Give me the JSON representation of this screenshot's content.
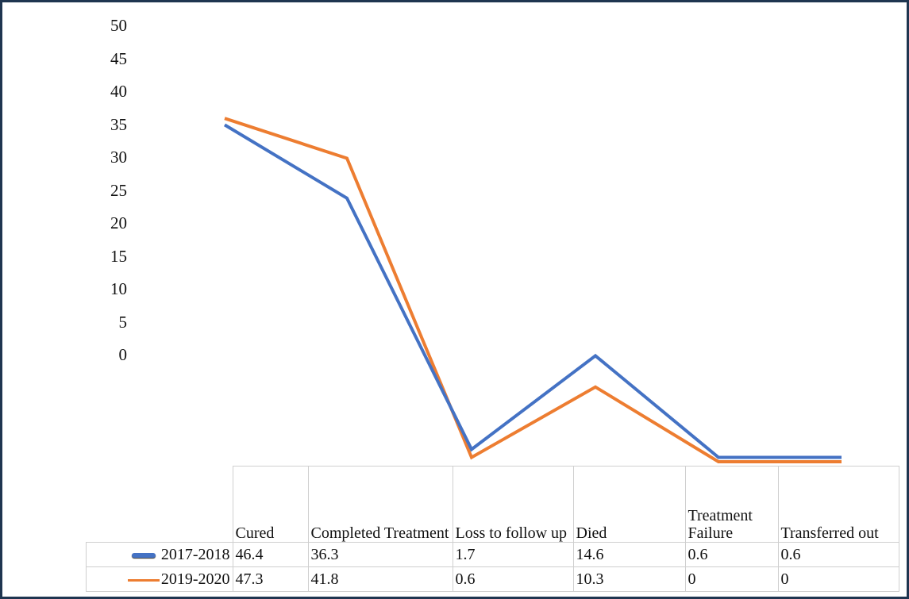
{
  "chart_data": {
    "type": "line",
    "title": "",
    "xlabel": "",
    "ylabel": "",
    "ylim": [
      0,
      50
    ],
    "yticks": [
      "50",
      "45",
      "40",
      "35",
      "30",
      "25",
      "20",
      "15",
      "10",
      "5",
      "0"
    ],
    "categories": [
      "Cured",
      "Completed Treatment",
      "Loss to follow up",
      "Died",
      "Treatment Failure",
      "Transferred out"
    ],
    "series": [
      {
        "name": "2017-2018",
        "color": "#4472c4",
        "values": [
          46.4,
          36.3,
          1.7,
          14.6,
          0.6,
          0.6
        ],
        "labels": [
          "46.4",
          "36.3",
          "1.7",
          "14.6",
          "0.6",
          "0.6"
        ]
      },
      {
        "name": "2019-2020",
        "color": "#ed7d31",
        "values": [
          47.3,
          41.8,
          0.6,
          10.3,
          0,
          0
        ],
        "labels": [
          "47.3",
          "41.8",
          "0.6",
          "10.3",
          "0",
          "0"
        ]
      }
    ],
    "legend": "data-table-bottom",
    "grid": false
  }
}
